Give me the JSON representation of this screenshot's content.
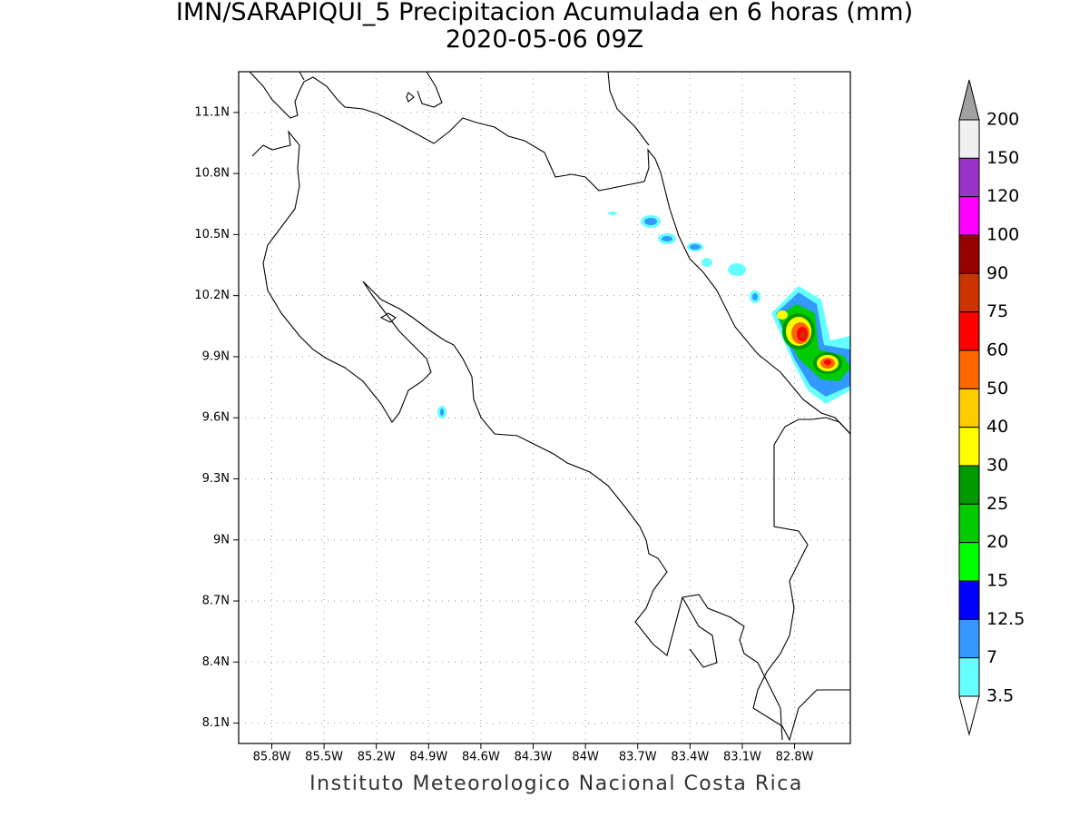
{
  "header": {
    "title": "IMN/SARAPIQUI_5 Precipitacion Acumulada en 6 horas (mm)",
    "subtitle": "2020-05-06 09Z"
  },
  "map": {
    "lon_range": [
      -85.99,
      -82.48
    ],
    "lat_range": [
      8.0,
      11.3
    ],
    "grid": true,
    "lon_ticks": [
      {
        "value": -85.8,
        "label": "85.8W"
      },
      {
        "value": -85.5,
        "label": "85.5W"
      },
      {
        "value": -85.2,
        "label": "85.2W"
      },
      {
        "value": -84.9,
        "label": "84.9W"
      },
      {
        "value": -84.6,
        "label": "84.6W"
      },
      {
        "value": -84.3,
        "label": "84.3W"
      },
      {
        "value": -84,
        "label": "84W"
      },
      {
        "value": -83.7,
        "label": "83.7W"
      },
      {
        "value": -83.4,
        "label": "83.4W"
      },
      {
        "value": -83.1,
        "label": "83.1W"
      },
      {
        "value": -82.8,
        "label": "82.8W"
      }
    ],
    "lat_ticks": [
      {
        "value": 11.1,
        "label": "11.1N"
      },
      {
        "value": 10.8,
        "label": "10.8N"
      },
      {
        "value": 10.5,
        "label": "10.5N"
      },
      {
        "value": 10.2,
        "label": "10.2N"
      },
      {
        "value": 9.9,
        "label": "9.9N"
      },
      {
        "value": 9.6,
        "label": "9.6N"
      },
      {
        "value": 9.3,
        "label": "9.3N"
      },
      {
        "value": 9,
        "label": "9N"
      },
      {
        "value": 8.7,
        "label": "8.7N"
      },
      {
        "value": 8.4,
        "label": "8.4N"
      },
      {
        "value": 8.1,
        "label": "8.1N"
      }
    ]
  },
  "colorbar": {
    "levels": [
      200,
      150,
      120,
      100,
      90,
      75,
      60,
      50,
      40,
      30,
      25,
      20,
      15,
      12.5,
      7,
      3.5
    ],
    "colors": [
      "#f0f0f0",
      "#9933cc",
      "#ff00ff",
      "#990000",
      "#cc3300",
      "#ff0000",
      "#ff6600",
      "#ffcc00",
      "#ffff00",
      "#009900",
      "#00cc00",
      "#00ff00",
      "#0000ff",
      "#3399ff",
      "#66ffff"
    ],
    "over_color": "#a0a0a0",
    "under_color": "#ffffff"
  },
  "footer": "Instituto Meteorologico Nacional Costa Rica"
}
